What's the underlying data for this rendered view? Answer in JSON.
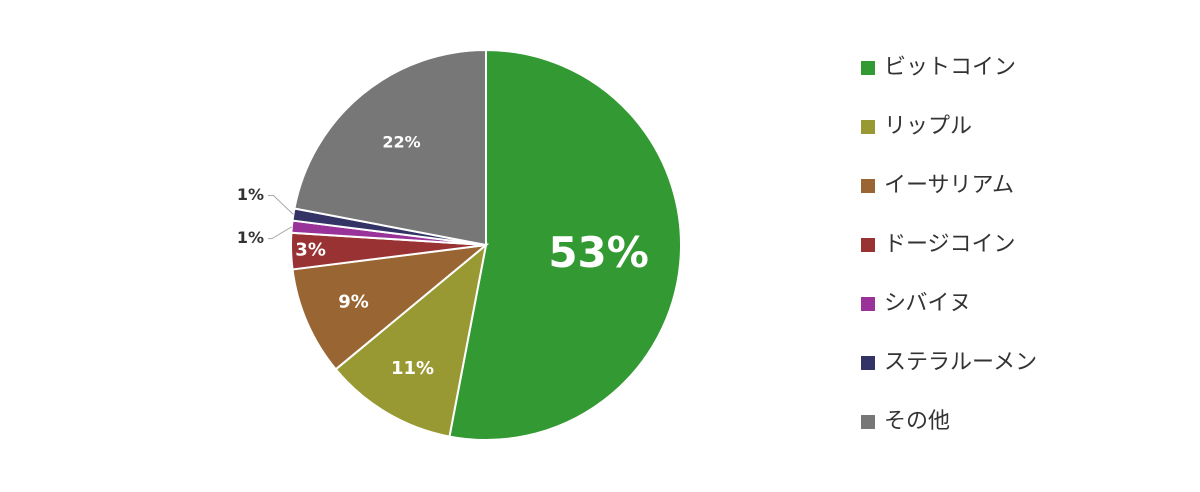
{
  "chart_data": {
    "type": "pie",
    "legend": "right",
    "categories": [
      "ビットコイン",
      "リップル",
      "イーサリアム",
      "ドージコイン",
      "シバイヌ",
      "ステラルーメン",
      "その他"
    ],
    "values": [
      53,
      11,
      9,
      3,
      1,
      1,
      22
    ],
    "value_labels": [
      "53%",
      "11%",
      "9%",
      "3%",
      "1%",
      "1%",
      "22%"
    ],
    "colors": [
      "#339933",
      "#999933",
      "#996633",
      "#993333",
      "#993399",
      "#333366",
      "#777777"
    ]
  }
}
